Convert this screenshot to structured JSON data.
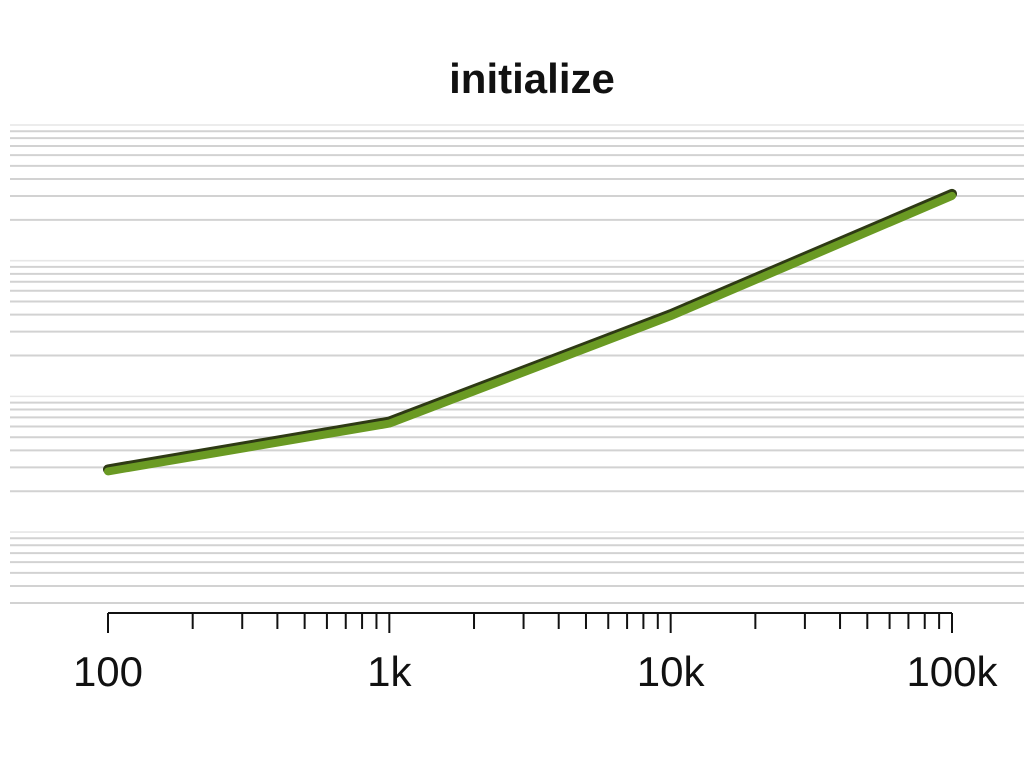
{
  "chart_data": {
    "type": "line",
    "title": "initialize",
    "xlabel": "",
    "ylabel": "",
    "x_scale": "log",
    "y_scale": "log",
    "xlim": [
      100,
      100000
    ],
    "ylim": [
      0.0003,
      1
    ],
    "x_ticks": [
      {
        "value": 100,
        "label": "100"
      },
      {
        "value": 1000,
        "label": "1k"
      },
      {
        "value": 10000,
        "label": "10k"
      },
      {
        "value": 100000,
        "label": "100k"
      }
    ],
    "grid": true,
    "legend": "none",
    "series": [
      {
        "color": "#6a9a23",
        "x": [
          100,
          1000,
          10000,
          100000
        ],
        "y": [
          0.0028,
          0.0063,
          0.039,
          0.3
        ]
      }
    ]
  }
}
